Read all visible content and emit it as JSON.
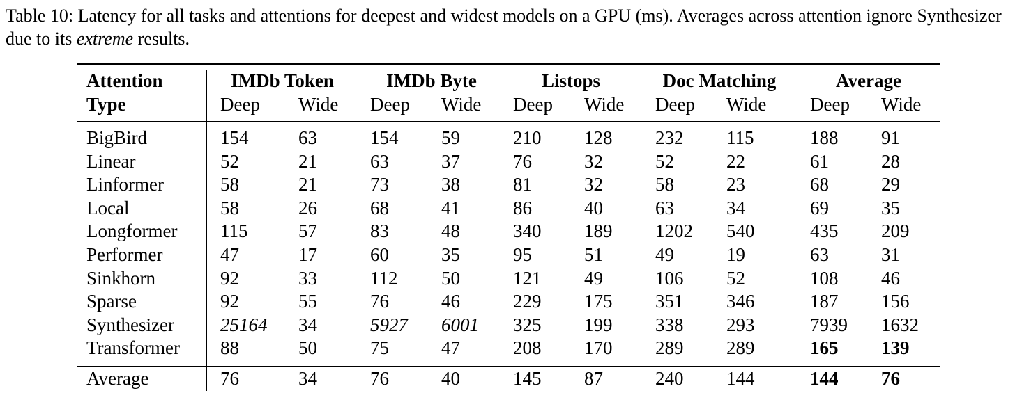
{
  "caption": {
    "part1": "Table 10: Latency for all tasks and attentions for deepest and widest models on a GPU (ms). Averages across attention ignore Synthesizer due to its ",
    "emph": "extreme",
    "part2": " results."
  },
  "table": {
    "header_type_line1": "Attention",
    "header_type_line2": "Type",
    "groups": [
      "IMDb Token",
      "IMDb Byte",
      "Listops",
      "Doc Matching",
      "Average"
    ],
    "sub": {
      "deep": "Deep",
      "wide": "Wide"
    },
    "rows": [
      {
        "name": "BigBird",
        "v": [
          "154",
          "63",
          "154",
          "59",
          "210",
          "128",
          "232",
          "115",
          "188",
          "91"
        ]
      },
      {
        "name": "Linear",
        "v": [
          "52",
          "21",
          "63",
          "37",
          "76",
          "32",
          "52",
          "22",
          "61",
          "28"
        ]
      },
      {
        "name": "Linformer",
        "v": [
          "58",
          "21",
          "73",
          "38",
          "81",
          "32",
          "58",
          "23",
          "68",
          "29"
        ]
      },
      {
        "name": "Local",
        "v": [
          "58",
          "26",
          "68",
          "41",
          "86",
          "40",
          "63",
          "34",
          "69",
          "35"
        ]
      },
      {
        "name": "Longformer",
        "v": [
          "115",
          "57",
          "83",
          "48",
          "340",
          "189",
          "1202",
          "540",
          "435",
          "209"
        ]
      },
      {
        "name": "Performer",
        "v": [
          "47",
          "17",
          "60",
          "35",
          "95",
          "51",
          "49",
          "19",
          "63",
          "31"
        ]
      },
      {
        "name": "Sinkhorn",
        "v": [
          "92",
          "33",
          "112",
          "50",
          "121",
          "49",
          "106",
          "52",
          "108",
          "46"
        ]
      },
      {
        "name": "Sparse",
        "v": [
          "92",
          "55",
          "76",
          "46",
          "229",
          "175",
          "351",
          "346",
          "187",
          "156"
        ]
      },
      {
        "name": "Synthesizer",
        "v": [
          "25164",
          "34",
          "5927",
          "6001",
          "325",
          "199",
          "338",
          "293",
          "7939",
          "1632"
        ]
      },
      {
        "name": "Transformer",
        "v": [
          "88",
          "50",
          "75",
          "47",
          "208",
          "170",
          "289",
          "289",
          "165",
          "139"
        ]
      }
    ],
    "average_row": {
      "name": "Average",
      "v": [
        "76",
        "34",
        "76",
        "40",
        "145",
        "87",
        "240",
        "144",
        "144",
        "76"
      ]
    }
  }
}
